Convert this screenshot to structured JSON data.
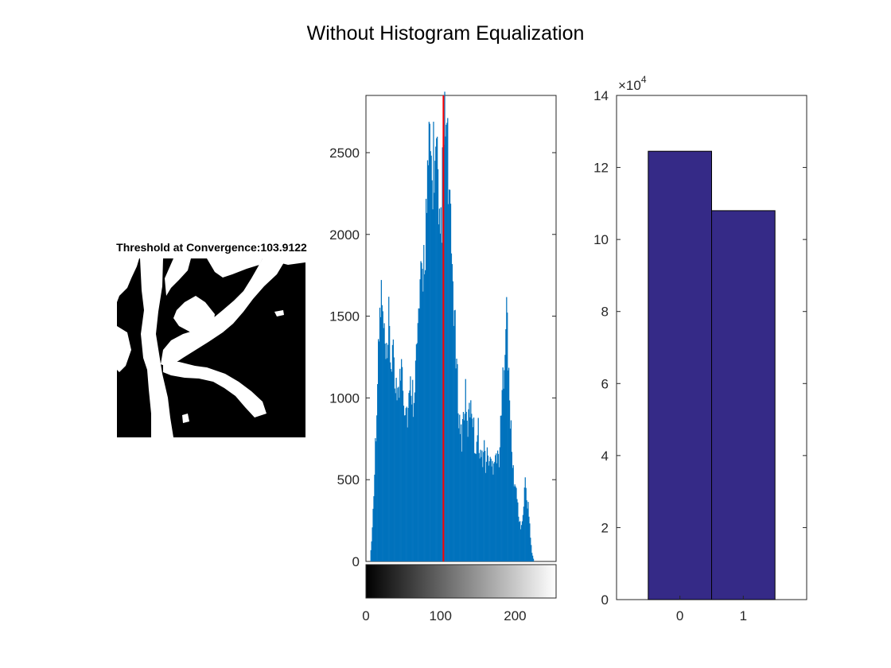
{
  "figure": {
    "title": "Without Histogram Equalization"
  },
  "image_panel": {
    "title": "Threshold at Convergence:103.9122",
    "threshold": 103.9122
  },
  "colors": {
    "histogram_bar": "#0072BD",
    "threshold_line": "#FF0000",
    "bar_fill": "#352A87",
    "axis": "#262626"
  },
  "chart_data": [
    {
      "type": "bar",
      "subtype": "histogram",
      "xlim": [
        0,
        255
      ],
      "ylim": [
        0,
        2850
      ],
      "yticks": [
        "0",
        "500",
        "1000",
        "1500",
        "2000",
        "2500"
      ],
      "xticks": [
        "0",
        "100",
        "200"
      ],
      "colorbar": "grayscale",
      "threshold_line_x": 103.9122,
      "envelope": {
        "x": [
          5,
          8,
          12,
          15,
          18,
          20,
          23,
          25,
          28,
          30,
          33,
          35,
          38,
          40,
          43,
          45,
          48,
          50,
          53,
          55,
          58,
          60,
          63,
          65,
          68,
          70,
          73,
          75,
          78,
          80,
          83,
          85,
          88,
          90,
          93,
          95,
          97,
          100,
          102,
          104,
          106,
          108,
          110,
          112,
          115,
          118,
          120,
          123,
          125,
          128,
          130,
          133,
          135,
          138,
          140,
          143,
          145,
          148,
          150,
          153,
          155,
          158,
          160,
          163,
          165,
          168,
          170,
          173,
          175,
          178,
          180,
          183,
          185,
          188,
          190,
          193,
          195,
          198,
          200,
          203,
          205,
          208,
          210,
          213,
          215,
          218,
          220,
          222,
          225
        ],
        "y": [
          0,
          200,
          700,
          1100,
          1500,
          1620,
          1400,
          1280,
          1150,
          1450,
          1200,
          1300,
          1050,
          1150,
          1000,
          1100,
          1300,
          1000,
          950,
          900,
          1000,
          1100,
          1000,
          1150,
          1300,
          1500,
          1650,
          1750,
          1900,
          2100,
          2300,
          2600,
          2300,
          2500,
          2400,
          2450,
          1900,
          2050,
          2300,
          2550,
          2700,
          2550,
          2350,
          2050,
          1800,
          1500,
          1250,
          1000,
          850,
          750,
          900,
          1000,
          800,
          900,
          1000,
          900,
          700,
          750,
          800,
          650,
          620,
          700,
          600,
          650,
          620,
          580,
          600,
          700,
          620,
          650,
          800,
          1100,
          1300,
          1600,
          1200,
          900,
          650,
          500,
          450,
          350,
          250,
          200,
          300,
          480,
          400,
          300,
          150,
          50,
          0
        ]
      }
    },
    {
      "type": "bar",
      "categories": [
        "0",
        "1"
      ],
      "values": [
        124500,
        108000
      ],
      "ylim": [
        0,
        140000
      ],
      "yticks": [
        "0",
        "2",
        "4",
        "6",
        "8",
        "10",
        "12",
        "14"
      ],
      "scale_label": "×10",
      "scale_exponent": "4"
    }
  ]
}
